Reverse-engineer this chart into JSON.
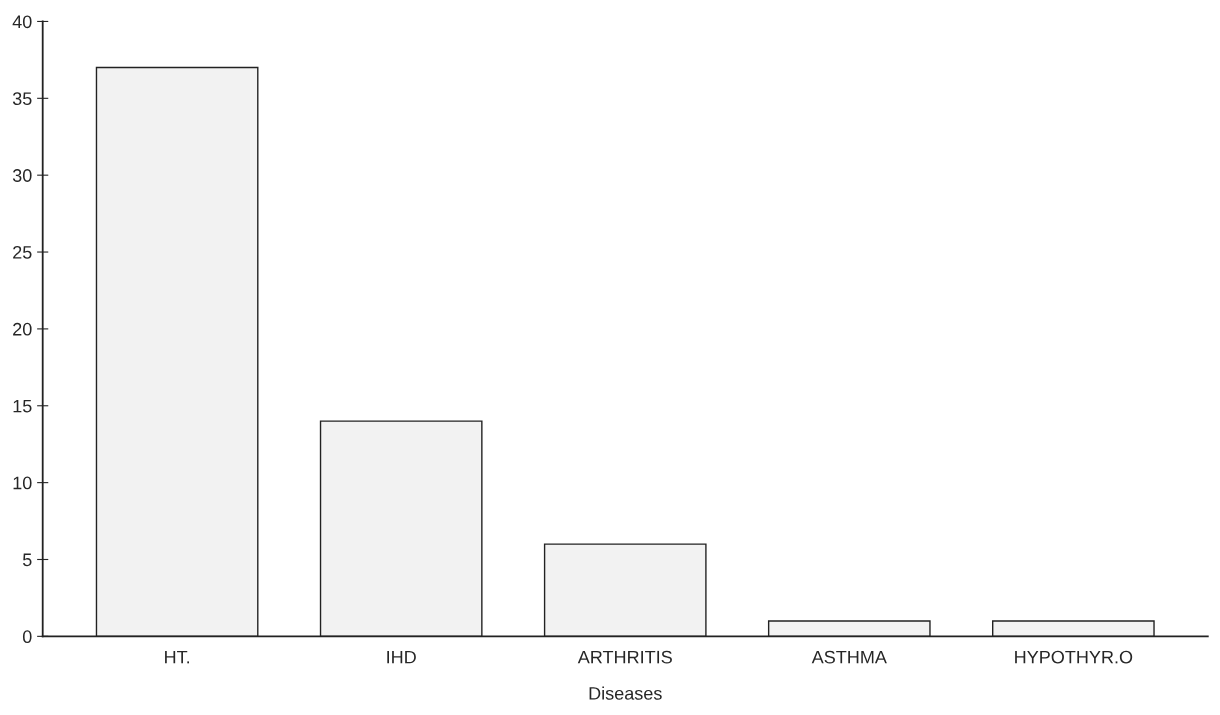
{
  "chart_data": {
    "type": "bar",
    "xlabel": "Diseases",
    "categories": [
      "HT.",
      "IHD",
      "ARTHRITIS",
      "ASTHMA",
      "HYPOTHYR.O"
    ],
    "values": [
      37,
      14,
      6,
      1,
      1
    ],
    "color": "#f2f2f2",
    "ylim": [
      0,
      40
    ],
    "yticks": [
      0,
      5,
      10,
      15,
      20,
      25,
      30,
      35,
      40
    ],
    "grid": false
  }
}
